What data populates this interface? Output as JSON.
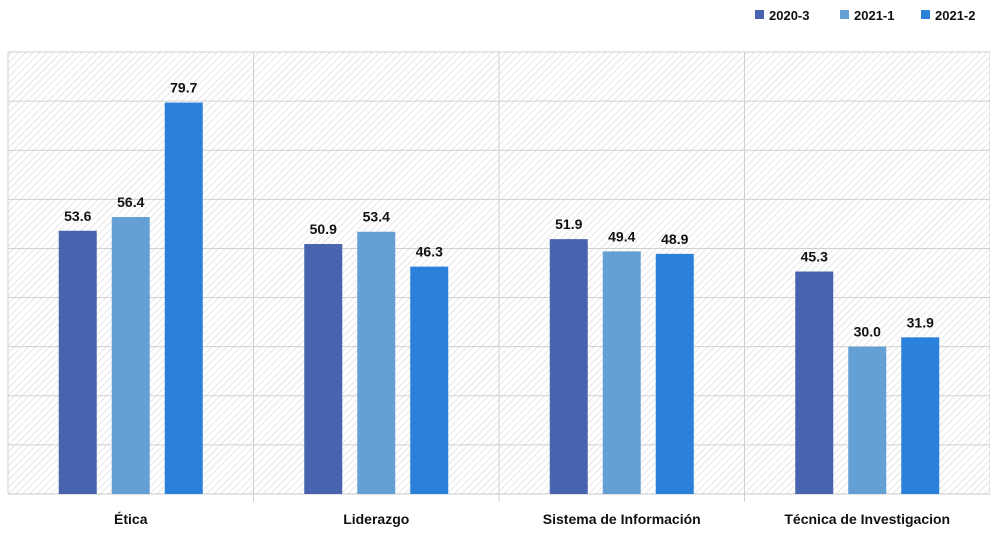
{
  "chart_data": {
    "type": "bar",
    "categories": [
      "Ética",
      "Liderazgo",
      "Sistema de Información",
      "Técnica de Investigacion"
    ],
    "series": [
      {
        "name": "2020-3",
        "values": [
          53.6,
          50.9,
          51.9,
          45.3
        ],
        "color": "#4864AE"
      },
      {
        "name": "2021-1",
        "values": [
          56.4,
          53.4,
          49.4,
          30.0
        ],
        "color": "#65A0D4"
      },
      {
        "name": "2021-2",
        "values": [
          79.7,
          46.3,
          48.9,
          31.9
        ],
        "color": "#2B80D9"
      }
    ],
    "value_labels": [
      [
        "53.6",
        "56.4",
        "79.7"
      ],
      [
        "50.9",
        "53.4",
        "46.3"
      ],
      [
        "51.9",
        "49.4",
        "48.9"
      ],
      [
        "45.3",
        "30.0",
        "31.9"
      ]
    ],
    "ylim": [
      0,
      90
    ],
    "gridline_step": 10,
    "y_tick_labels_shown": false,
    "grid": true,
    "legend_position": "top-right",
    "title": "",
    "xlabel": "",
    "ylabel": ""
  }
}
